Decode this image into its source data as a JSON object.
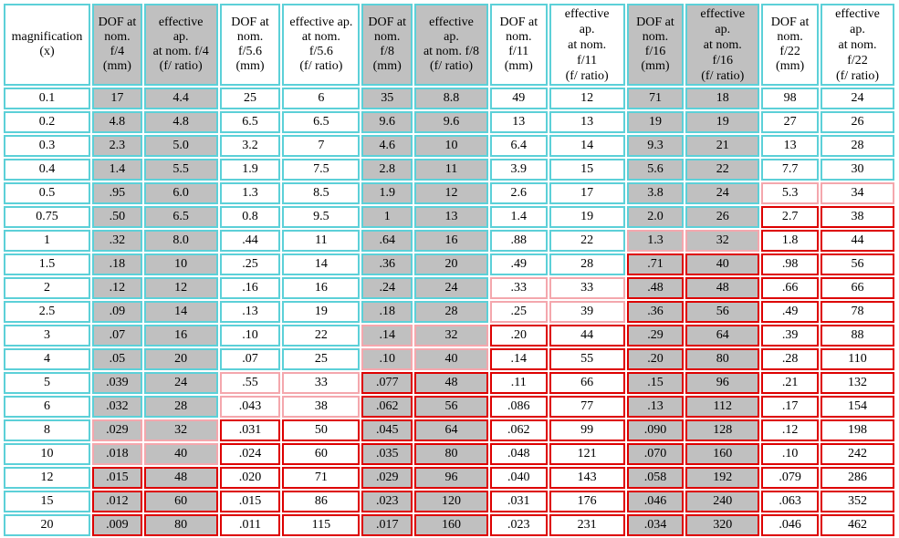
{
  "columns": [
    {
      "lines": [
        "magnification",
        "(x)"
      ],
      "shaded": false
    },
    {
      "lines": [
        "DOF at",
        "nom.",
        "f/4",
        "(mm)"
      ],
      "shaded": true
    },
    {
      "lines": [
        "effective",
        "ap.",
        "at nom. f/4",
        "(f/ ratio)"
      ],
      "shaded": true
    },
    {
      "lines": [
        "DOF at",
        "nom.",
        "f/5.6",
        "(mm)"
      ],
      "shaded": false
    },
    {
      "lines": [
        "effective ap.",
        "at nom.",
        "f/5.6",
        "(f/ ratio)"
      ],
      "shaded": false
    },
    {
      "lines": [
        "DOF at",
        "nom.",
        "f/8",
        "(mm)"
      ],
      "shaded": true
    },
    {
      "lines": [
        "effective",
        "ap.",
        "at nom. f/8",
        "(f/ ratio)"
      ],
      "shaded": true
    },
    {
      "lines": [
        "DOF at",
        "nom.",
        "f/11",
        "(mm)"
      ],
      "shaded": false
    },
    {
      "lines": [
        "effective",
        "ap.",
        "at nom.",
        "f/11",
        "(f/ ratio)"
      ],
      "shaded": false
    },
    {
      "lines": [
        "DOF at",
        "nom.",
        "f/16",
        "(mm)"
      ],
      "shaded": true
    },
    {
      "lines": [
        "effective",
        "ap.",
        "at nom.",
        "f/16",
        "(f/ ratio)"
      ],
      "shaded": true
    },
    {
      "lines": [
        "DOF at",
        "nom.",
        "f/22",
        "(mm)"
      ],
      "shaded": false
    },
    {
      "lines": [
        "effective",
        "ap.",
        "at nom.",
        "f/22",
        "(f/ ratio)"
      ],
      "shaded": false
    }
  ],
  "rows": [
    {
      "cells": [
        "0.1",
        "17",
        "4.4",
        "25",
        "6",
        "35",
        "8.8",
        "49",
        "12",
        "71",
        "18",
        "98",
        "24"
      ],
      "levels": [
        0,
        0,
        0,
        0,
        0,
        0,
        0,
        0,
        0,
        0,
        0,
        0,
        0
      ]
    },
    {
      "cells": [
        "0.2",
        "4.8",
        "4.8",
        "6.5",
        "6.5",
        "9.6",
        "9.6",
        "13",
        "13",
        "19",
        "19",
        "27",
        "26"
      ],
      "levels": [
        0,
        0,
        0,
        0,
        0,
        0,
        0,
        0,
        0,
        0,
        0,
        0,
        0
      ]
    },
    {
      "cells": [
        "0.3",
        "2.3",
        "5.0",
        "3.2",
        "7",
        "4.6",
        "10",
        "6.4",
        "14",
        "9.3",
        "21",
        "13",
        "28"
      ],
      "levels": [
        0,
        0,
        0,
        0,
        0,
        0,
        0,
        0,
        0,
        0,
        0,
        0,
        0
      ]
    },
    {
      "cells": [
        "0.4",
        "1.4",
        "5.5",
        "1.9",
        "7.5",
        "2.8",
        "11",
        "3.9",
        "15",
        "5.6",
        "22",
        "7.7",
        "30"
      ],
      "levels": [
        0,
        0,
        0,
        0,
        0,
        0,
        0,
        0,
        0,
        0,
        0,
        0,
        0
      ]
    },
    {
      "cells": [
        "0.5",
        ".95",
        "6.0",
        "1.3",
        "8.5",
        "1.9",
        "12",
        "2.6",
        "17",
        "3.8",
        "24",
        "5.3",
        "34"
      ],
      "levels": [
        0,
        0,
        0,
        0,
        0,
        0,
        0,
        0,
        0,
        0,
        0,
        1,
        1
      ]
    },
    {
      "cells": [
        "0.75",
        ".50",
        "6.5",
        "0.8",
        "9.5",
        "1",
        "13",
        "1.4",
        "19",
        "2.0",
        "26",
        "2.7",
        "38"
      ],
      "levels": [
        0,
        0,
        0,
        0,
        0,
        0,
        0,
        0,
        0,
        0,
        0,
        2,
        2
      ]
    },
    {
      "cells": [
        "1",
        ".32",
        "8.0",
        ".44",
        "11",
        ".64",
        "16",
        ".88",
        "22",
        "1.3",
        "32",
        "1.8",
        "44"
      ],
      "levels": [
        0,
        0,
        0,
        0,
        0,
        0,
        0,
        0,
        0,
        1,
        1,
        2,
        2
      ]
    },
    {
      "cells": [
        "1.5",
        ".18",
        "10",
        ".25",
        "14",
        ".36",
        "20",
        ".49",
        "28",
        ".71",
        "40",
        ".98",
        "56"
      ],
      "levels": [
        0,
        0,
        0,
        0,
        0,
        0,
        0,
        0,
        0,
        2,
        2,
        2,
        2
      ]
    },
    {
      "cells": [
        "2",
        ".12",
        "12",
        ".16",
        "16",
        ".24",
        "24",
        ".33",
        "33",
        ".48",
        "48",
        ".66",
        "66"
      ],
      "levels": [
        0,
        0,
        0,
        0,
        0,
        0,
        0,
        1,
        1,
        2,
        2,
        2,
        2
      ]
    },
    {
      "cells": [
        "2.5",
        ".09",
        "14",
        ".13",
        "19",
        ".18",
        "28",
        ".25",
        "39",
        ".36",
        "56",
        ".49",
        "78"
      ],
      "levels": [
        0,
        0,
        0,
        0,
        0,
        0,
        0,
        1,
        1,
        2,
        2,
        2,
        2
      ]
    },
    {
      "cells": [
        "3",
        ".07",
        "16",
        ".10",
        "22",
        ".14",
        "32",
        ".20",
        "44",
        ".29",
        "64",
        ".39",
        "88"
      ],
      "levels": [
        0,
        0,
        0,
        0,
        0,
        1,
        1,
        2,
        2,
        2,
        2,
        2,
        2
      ]
    },
    {
      "cells": [
        "4",
        ".05",
        "20",
        ".07",
        "25",
        ".10",
        "40",
        ".14",
        "55",
        ".20",
        "80",
        ".28",
        "110"
      ],
      "levels": [
        0,
        0,
        0,
        0,
        0,
        1,
        1,
        2,
        2,
        2,
        2,
        2,
        2
      ]
    },
    {
      "cells": [
        "5",
        ".039",
        "24",
        ".55",
        "33",
        ".077",
        "48",
        ".11",
        "66",
        ".15",
        "96",
        ".21",
        "132"
      ],
      "levels": [
        0,
        0,
        0,
        1,
        1,
        2,
        2,
        2,
        2,
        2,
        2,
        2,
        2
      ]
    },
    {
      "cells": [
        "6",
        ".032",
        "28",
        ".043",
        "38",
        ".062",
        "56",
        ".086",
        "77",
        ".13",
        "112",
        ".17",
        "154"
      ],
      "levels": [
        0,
        0,
        0,
        1,
        1,
        2,
        2,
        2,
        2,
        2,
        2,
        2,
        2
      ]
    },
    {
      "cells": [
        "8",
        ".029",
        "32",
        ".031",
        "50",
        ".045",
        "64",
        ".062",
        "99",
        ".090",
        "128",
        ".12",
        "198"
      ],
      "levels": [
        0,
        1,
        1,
        2,
        2,
        2,
        2,
        2,
        2,
        2,
        2,
        2,
        2
      ]
    },
    {
      "cells": [
        "10",
        ".018",
        "40",
        ".024",
        "60",
        ".035",
        "80",
        ".048",
        "121",
        ".070",
        "160",
        ".10",
        "242"
      ],
      "levels": [
        0,
        1,
        1,
        2,
        2,
        2,
        2,
        2,
        2,
        2,
        2,
        2,
        2
      ]
    },
    {
      "cells": [
        "12",
        ".015",
        "48",
        ".020",
        "71",
        ".029",
        "96",
        ".040",
        "143",
        ".058",
        "192",
        ".079",
        "286"
      ],
      "levels": [
        0,
        2,
        2,
        2,
        2,
        2,
        2,
        2,
        2,
        2,
        2,
        2,
        2
      ]
    },
    {
      "cells": [
        "15",
        ".012",
        "60",
        ".015",
        "86",
        ".023",
        "120",
        ".031",
        "176",
        ".046",
        "240",
        ".063",
        "352"
      ],
      "levels": [
        0,
        2,
        2,
        2,
        2,
        2,
        2,
        2,
        2,
        2,
        2,
        2,
        2
      ]
    },
    {
      "cells": [
        "20",
        ".009",
        "80",
        ".011",
        "115",
        ".017",
        "160",
        ".023",
        "231",
        ".034",
        "320",
        ".046",
        "462"
      ],
      "levels": [
        0,
        2,
        2,
        2,
        2,
        2,
        2,
        2,
        2,
        2,
        2,
        2,
        2
      ]
    }
  ],
  "colors": {
    "border_default": "#5cd0d8",
    "border_caution": "#f4a7ad",
    "border_warning": "#dd0000",
    "shade": "#c0c0c0"
  }
}
